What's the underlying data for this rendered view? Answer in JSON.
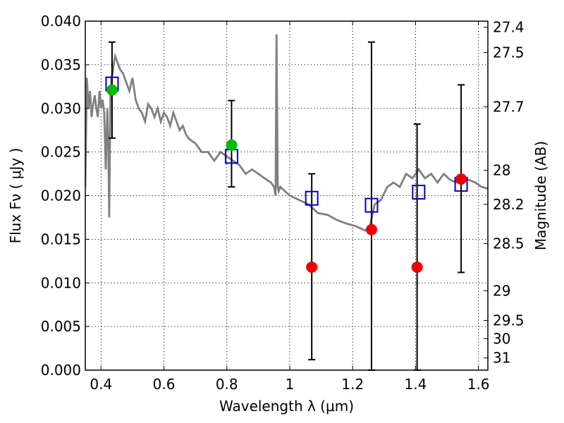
{
  "chart_data": {
    "type": "scatter",
    "xlabel": "Wavelength  λ (μm)",
    "ylabel": "Flux  Fν  ( μJy )",
    "ylabel_right": "Magnitude (AB)",
    "xlim": [
      0.35,
      1.63
    ],
    "ylim": [
      0.0,
      0.04
    ],
    "grid": true,
    "x_ticks": [
      0.4,
      0.6,
      0.8,
      1.0,
      1.2,
      1.4,
      1.6
    ],
    "x_tick_labels": [
      "0.4",
      "0.6",
      "0.8",
      "1",
      "1.2",
      "1.4",
      "1.6"
    ],
    "y_ticks": [
      0.0,
      0.005,
      0.01,
      0.015,
      0.02,
      0.025,
      0.03,
      0.035,
      0.04
    ],
    "y_tick_labels": [
      "0.000",
      "0.005",
      "0.010",
      "0.015",
      "0.020",
      "0.025",
      "0.030",
      "0.035",
      "0.040"
    ],
    "right_ticks": [
      {
        "flux": 0.0393,
        "label": "27.4"
      },
      {
        "flux": 0.0364,
        "label": "27.5"
      },
      {
        "flux": 0.0302,
        "label": "27.7"
      },
      {
        "flux": 0.0229,
        "label": "28"
      },
      {
        "flux": 0.019,
        "label": "28.2"
      },
      {
        "flux": 0.0145,
        "label": "28.5"
      },
      {
        "flux": 0.0091,
        "label": "29"
      },
      {
        "flux": 0.0057,
        "label": "29.5"
      },
      {
        "flux": 0.0036,
        "label": "30"
      },
      {
        "flux": 0.0014,
        "label": "31"
      }
    ],
    "series": [
      {
        "name": "model spectrum",
        "kind": "line",
        "color": "#808080",
        "x": [
          0.35,
          0.355,
          0.36,
          0.365,
          0.37,
          0.375,
          0.38,
          0.385,
          0.39,
          0.395,
          0.4,
          0.405,
          0.41,
          0.415,
          0.42,
          0.423,
          0.426,
          0.43,
          0.433,
          0.437,
          0.44,
          0.445,
          0.45,
          0.46,
          0.47,
          0.48,
          0.49,
          0.5,
          0.51,
          0.52,
          0.53,
          0.54,
          0.55,
          0.56,
          0.57,
          0.58,
          0.59,
          0.6,
          0.61,
          0.62,
          0.63,
          0.64,
          0.65,
          0.66,
          0.67,
          0.68,
          0.7,
          0.72,
          0.74,
          0.76,
          0.78,
          0.8,
          0.82,
          0.84,
          0.86,
          0.88,
          0.9,
          0.92,
          0.94,
          0.95,
          0.955,
          0.958,
          0.962,
          0.965,
          0.97,
          1.0,
          1.03,
          1.06,
          1.09,
          1.12,
          1.15,
          1.18,
          1.21,
          1.24,
          1.255,
          1.27,
          1.29,
          1.31,
          1.33,
          1.35,
          1.37,
          1.39,
          1.41,
          1.43,
          1.45,
          1.47,
          1.49,
          1.51,
          1.53,
          1.55,
          1.57,
          1.59,
          1.61,
          1.63
        ],
        "y": [
          0.021,
          0.0335,
          0.03,
          0.032,
          0.029,
          0.0305,
          0.0315,
          0.03,
          0.029,
          0.032,
          0.03,
          0.031,
          0.0295,
          0.023,
          0.03,
          0.026,
          0.0175,
          0.032,
          0.0335,
          0.034,
          0.035,
          0.036,
          0.0355,
          0.0345,
          0.034,
          0.033,
          0.032,
          0.0335,
          0.031,
          0.03,
          0.0295,
          0.0285,
          0.0305,
          0.03,
          0.029,
          0.03,
          0.0285,
          0.0295,
          0.029,
          0.028,
          0.0295,
          0.0285,
          0.0275,
          0.028,
          0.027,
          0.0265,
          0.026,
          0.025,
          0.025,
          0.024,
          0.025,
          0.0245,
          0.024,
          0.0235,
          0.0225,
          0.023,
          0.0225,
          0.022,
          0.0215,
          0.021,
          0.02,
          0.0385,
          0.021,
          0.0205,
          0.021,
          0.02,
          0.0195,
          0.019,
          0.018,
          0.0178,
          0.0172,
          0.0168,
          0.0165,
          0.016,
          0.0165,
          0.019,
          0.0195,
          0.021,
          0.0215,
          0.021,
          0.0225,
          0.022,
          0.023,
          0.022,
          0.0225,
          0.0215,
          0.0225,
          0.0218,
          0.0215,
          0.022,
          0.0218,
          0.0215,
          0.021,
          0.0208
        ]
      },
      {
        "name": "model band flux",
        "kind": "open-square",
        "color": "#0000cc",
        "x": [
          0.435,
          0.815,
          1.07,
          1.26,
          1.41,
          1.545
        ],
        "y": [
          0.0328,
          0.0245,
          0.0197,
          0.0189,
          0.0204,
          0.0213
        ]
      },
      {
        "name": "observed (green)",
        "kind": "filled-circle",
        "color": "#00bb00",
        "x": [
          0.435,
          0.815
        ],
        "y": [
          0.0321,
          0.0258
        ]
      },
      {
        "name": "observed (red)",
        "kind": "filled-circle",
        "color": "#ee0000",
        "x": [
          1.07,
          1.26,
          1.405,
          1.545
        ],
        "y": [
          0.0118,
          0.0161,
          0.0118,
          0.0219
        ]
      },
      {
        "name": "error bars",
        "kind": "errorbar",
        "color": "#000000",
        "x": [
          0.435,
          0.815,
          1.07,
          1.26,
          1.405,
          1.545
        ],
        "low": [
          0.0266,
          0.021,
          0.0012,
          0.0,
          0.0,
          0.0112
        ],
        "high": [
          0.0376,
          0.0309,
          0.0225,
          0.0376,
          0.0282,
          0.0327
        ]
      }
    ]
  }
}
